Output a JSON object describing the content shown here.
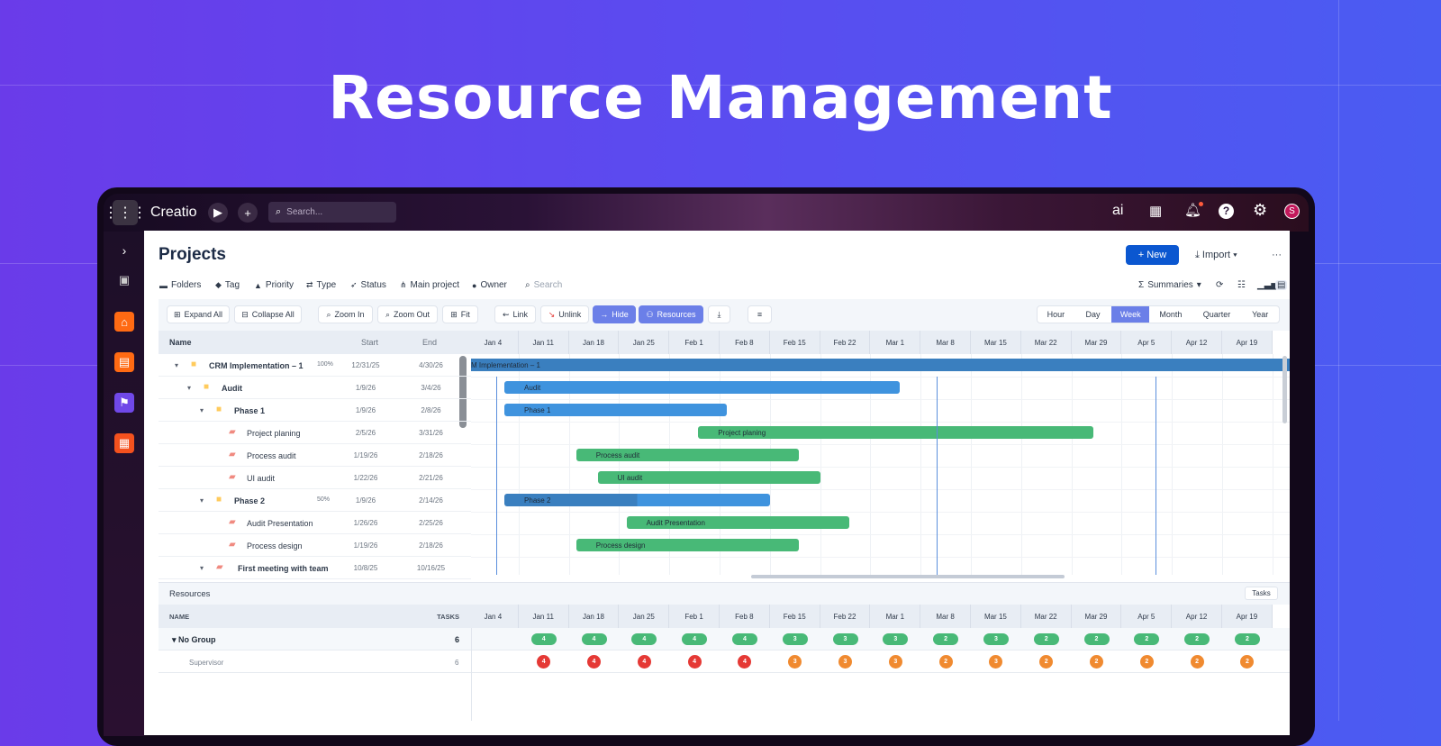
{
  "hero": {
    "title": "Resource Management"
  },
  "topbar": {
    "logo": "Creatio",
    "search_placeholder": "Search...",
    "ai_label": "ai",
    "avatar": "S"
  },
  "page": {
    "title": "Projects",
    "new_label": "+ New",
    "import_label": "Import",
    "more_label": "···"
  },
  "filters": [
    {
      "icon": "folder-icon",
      "label": "Folders"
    },
    {
      "icon": "tag-icon",
      "label": "Tag"
    },
    {
      "icon": "warning-icon",
      "label": "Priority"
    },
    {
      "icon": "type-icon",
      "label": "Type"
    },
    {
      "icon": "rocket-icon",
      "label": "Status"
    },
    {
      "icon": "hierarchy-icon",
      "label": "Main project"
    },
    {
      "icon": "user-icon",
      "label": "Owner"
    }
  ],
  "filter_search": "Search",
  "summaries_label": "Summaries",
  "toolbar": {
    "expand_all": "Expand All",
    "collapse_all": "Collapse All",
    "zoom_in": "Zoom In",
    "zoom_out": "Zoom Out",
    "fit": "Fit",
    "link": "Link",
    "unlink": "Unlink",
    "hide": "Hide",
    "resources": "Resources"
  },
  "scales": [
    {
      "label": "Hour"
    },
    {
      "label": "Day"
    },
    {
      "label": "Week",
      "active": true
    },
    {
      "label": "Month"
    },
    {
      "label": "Quarter"
    },
    {
      "label": "Year"
    }
  ],
  "grid": {
    "headers": {
      "name": "Name",
      "start": "Start",
      "end": "End"
    },
    "rows": [
      {
        "name": "CRM Implementation – 1",
        "level": 0,
        "type": "folder",
        "progress": "100%",
        "start": "12/31/25",
        "end": "4/30/26"
      },
      {
        "name": "Audit",
        "level": 1,
        "type": "folder",
        "progress": "",
        "start": "1/9/26",
        "end": "3/4/26"
      },
      {
        "name": "Phase 1",
        "level": 2,
        "type": "folder",
        "progress": "",
        "start": "1/9/26",
        "end": "2/8/26"
      },
      {
        "name": "Project planing",
        "level": 3,
        "type": "task",
        "progress": "",
        "start": "2/5/26",
        "end": "3/31/26"
      },
      {
        "name": "Process audit",
        "level": 3,
        "type": "task",
        "progress": "",
        "start": "1/19/26",
        "end": "2/18/26"
      },
      {
        "name": "UI audit",
        "level": 3,
        "type": "task",
        "progress": "",
        "start": "1/22/26",
        "end": "2/21/26"
      },
      {
        "name": "Phase 2",
        "level": 2,
        "type": "folder",
        "progress": "50%",
        "start": "1/9/26",
        "end": "2/14/26"
      },
      {
        "name": "Audit Presentation",
        "level": 3,
        "type": "task",
        "progress": "",
        "start": "1/26/26",
        "end": "2/25/26"
      },
      {
        "name": "Process design",
        "level": 3,
        "type": "task",
        "progress": "",
        "start": "1/19/26",
        "end": "2/18/26"
      },
      {
        "name": "First meeting with team",
        "level": 2,
        "type": "task",
        "progress": "",
        "start": "10/8/25",
        "end": "10/16/25"
      }
    ]
  },
  "weeks": [
    "Jan 4",
    "Jan 11",
    "Jan 18",
    "Jan 25",
    "Feb 1",
    "Feb 8",
    "Feb 15",
    "Feb 22",
    "Mar 1",
    "Mar 8",
    "Mar 15",
    "Mar 22",
    "Mar 29",
    "Apr 5",
    "Apr 12",
    "Apr 19"
  ],
  "colors": {
    "summary_bar": "#3f93de",
    "project_bar": "#3a7fbf",
    "task_bar": "#48b977",
    "overload": "#e53935",
    "warn": "#f08a30",
    "accent": "#6b7fe8",
    "primary": "#0b57d0"
  },
  "resources": {
    "title": "Resources",
    "tasks_button": "Tasks",
    "headers": {
      "name": "NAME",
      "tasks": "TASKS"
    },
    "group": {
      "name": "No Group",
      "tasks": "6",
      "weekly": [
        "",
        "4",
        "4",
        "4",
        "4",
        "4",
        "3",
        "3",
        "3",
        "2",
        "3",
        "2",
        "2",
        "2",
        "2",
        "2"
      ]
    },
    "people": [
      {
        "name": "Supervisor",
        "tasks": "6",
        "weekly": [
          "",
          "4",
          "4",
          "4",
          "4",
          "4",
          "3",
          "3",
          "3",
          "2",
          "3",
          "2",
          "2",
          "2",
          "2",
          "2"
        ]
      }
    ]
  }
}
